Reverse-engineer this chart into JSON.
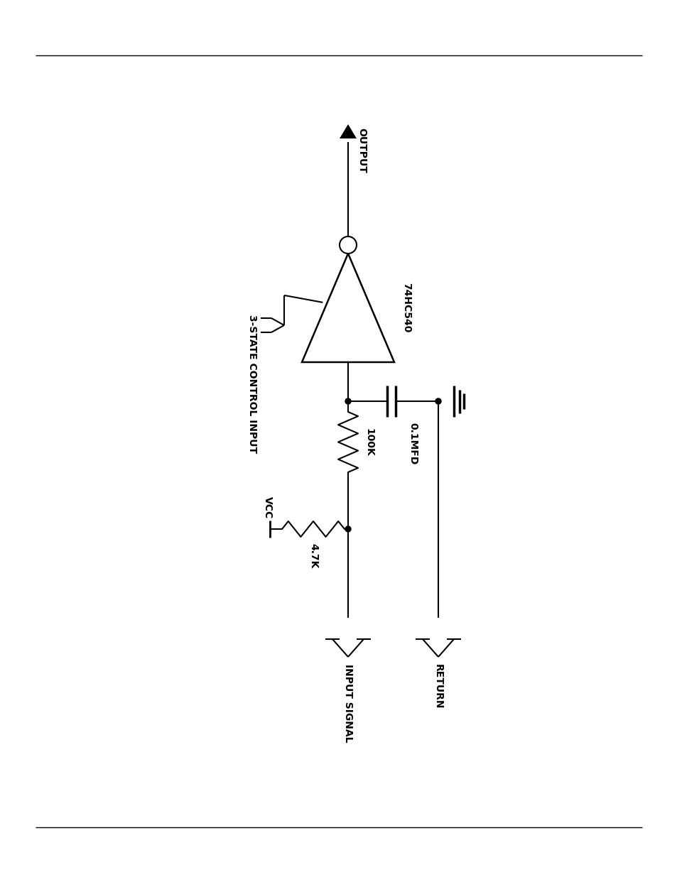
{
  "bg_color": "#ffffff",
  "line_color": "#000000",
  "line_width": 1.5,
  "fig_width": 9.54,
  "fig_height": 12.35,
  "labels": {
    "3state": "3-STATE CONTROL INPUT",
    "output": "OUTPUT",
    "ic": "74HC540",
    "r1": "4.7K",
    "r2": "100K",
    "c1": "0.1MFD",
    "vcc": "VCC",
    "input_signal": "INPUT SIGNAL",
    "return": "RETURN"
  }
}
